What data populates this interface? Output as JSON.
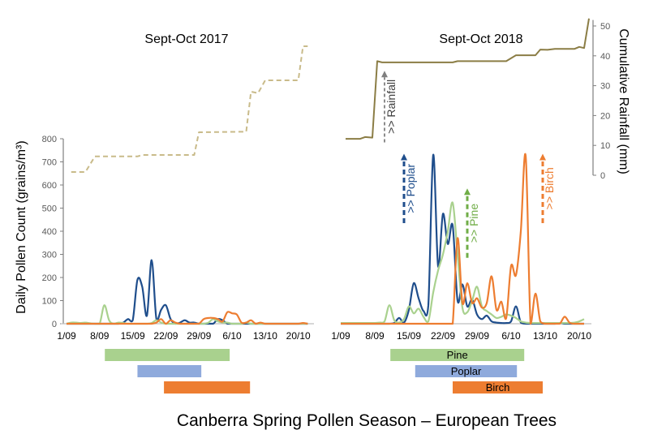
{
  "chart_data": {
    "type": "line",
    "title": "Canberra Spring Pollen Season – European Trees",
    "ylabel": "Daily Pollen Count (grains/m³)",
    "y2label": "Cumulative Rainfall (mm)",
    "ylim": [
      0,
      800
    ],
    "y2lim": [
      0,
      50
    ],
    "yticks": [
      0,
      100,
      200,
      300,
      400,
      500,
      600,
      700,
      800
    ],
    "y2ticks": [
      0,
      10,
      20,
      30,
      40,
      50
    ],
    "xticks": [
      {
        "day": 0,
        "label": "1/09"
      },
      {
        "day": 7,
        "label": "8/09"
      },
      {
        "day": 14,
        "label": "15/09"
      },
      {
        "day": 21,
        "label": "22/09"
      },
      {
        "day": 28,
        "label": "29/09"
      },
      {
        "day": 35,
        "label": "6/10"
      },
      {
        "day": 42,
        "label": "13/10"
      },
      {
        "day": 49,
        "label": "20/10"
      }
    ],
    "colors": {
      "poplar": "#1f4e8c",
      "pine": "#a9d18e",
      "birch": "#ed7d31",
      "rain2018": "#8b7d45",
      "rain2017": "#c9bb8a",
      "poplar_bar": "#8faadc",
      "rain_arrow": "#7f7f7f"
    },
    "panels": [
      {
        "subtitle": "Sept-Oct 2017",
        "series": [
          {
            "name": "Poplar",
            "key": "poplar",
            "values": [
              0,
              0,
              0,
              0,
              0,
              0,
              0,
              0,
              0,
              0,
              0,
              0,
              5,
              20,
              15,
              190,
              160,
              35,
              275,
              20,
              60,
              80,
              20,
              0,
              5,
              15,
              5,
              5,
              0,
              0,
              0,
              0,
              20,
              15,
              0,
              0,
              0,
              0,
              0,
              0,
              0,
              0,
              0,
              0,
              0,
              0,
              0,
              0,
              0,
              0,
              0,
              0
            ]
          },
          {
            "name": "Pine",
            "key": "pine",
            "values": [
              0,
              5,
              5,
              3,
              5,
              2,
              0,
              0,
              80,
              15,
              0,
              5,
              3,
              0,
              0,
              0,
              0,
              0,
              3,
              15,
              5,
              0,
              0,
              0,
              0,
              0,
              0,
              0,
              0,
              0,
              5,
              20,
              10,
              5,
              5,
              0,
              0,
              0,
              5,
              0,
              0,
              0,
              0,
              0,
              0,
              0,
              0,
              0,
              0,
              0,
              0,
              0
            ]
          },
          {
            "name": "Birch",
            "key": "birch",
            "values": [
              0,
              0,
              0,
              0,
              0,
              0,
              0,
              0,
              0,
              0,
              0,
              0,
              0,
              0,
              0,
              0,
              0,
              0,
              0,
              5,
              20,
              0,
              15,
              5,
              0,
              0,
              0,
              0,
              0,
              20,
              25,
              25,
              20,
              10,
              50,
              45,
              40,
              5,
              5,
              15,
              0,
              5,
              0,
              0,
              0,
              0,
              0,
              0,
              0,
              0,
              3,
              0
            ]
          }
        ],
        "rainfall": {
          "name": "Cumulative Rainfall 2017",
          "style": "dashed",
          "points": [
            [
              1,
              1.1
            ],
            [
              4,
              1.1
            ],
            [
              6,
              6.3
            ],
            [
              15,
              6.3
            ],
            [
              16,
              6.8
            ],
            [
              27,
              6.8
            ],
            [
              28,
              14.4
            ],
            [
              38,
              14.6
            ],
            [
              39,
              28
            ],
            [
              40.5,
              27.5
            ],
            [
              42,
              31.8
            ],
            [
              49,
              31.8
            ],
            [
              50,
              43.2
            ],
            [
              51,
              43.2
            ]
          ]
        },
        "seasons": [
          {
            "name": "Pine",
            "key": "pine",
            "start": 8.1,
            "end": 34.5,
            "label": ""
          },
          {
            "name": "Poplar",
            "key": "poplar_bar",
            "start": 15,
            "end": 28.5,
            "label": ""
          },
          {
            "name": "Birch",
            "key": "birch",
            "start": 20.6,
            "end": 38.8,
            "label": ""
          }
        ],
        "annotations": []
      },
      {
        "subtitle": "Sept-Oct 2018",
        "series": [
          {
            "name": "Poplar",
            "key": "poplar",
            "values": [
              0,
              0,
              0,
              0,
              0,
              0,
              0,
              0,
              0,
              0,
              0,
              3,
              25,
              5,
              60,
              175,
              110,
              55,
              80,
              730,
              250,
              475,
              345,
              425,
              100,
              170,
              75,
              105,
              40,
              20,
              35,
              10,
              5,
              3,
              3,
              10,
              75,
              5,
              0,
              0,
              0,
              0,
              0,
              0,
              0,
              3,
              0,
              0,
              0,
              0,
              0
            ]
          },
          {
            "name": "Pine",
            "key": "pine",
            "values": [
              3,
              3,
              3,
              3,
              3,
              3,
              3,
              3,
              5,
              10,
              80,
              15,
              5,
              20,
              75,
              45,
              65,
              30,
              10,
              135,
              230,
              300,
              400,
              523,
              300,
              70,
              50,
              100,
              160,
              75,
              55,
              40,
              25,
              30,
              40,
              35,
              25,
              10,
              5,
              3,
              3,
              3,
              3,
              3,
              3,
              3,
              3,
              3,
              5,
              10,
              20
            ]
          },
          {
            "name": "Birch",
            "key": "birch",
            "values": [
              0,
              0,
              0,
              0,
              0,
              0,
              0,
              0,
              0,
              0,
              0,
              0,
              0,
              0,
              0,
              0,
              0,
              0,
              0,
              0,
              0,
              0,
              0,
              0,
              370,
              90,
              175,
              90,
              110,
              70,
              90,
              205,
              60,
              95,
              25,
              250,
              210,
              400,
              725,
              0,
              130,
              10,
              0,
              0,
              0,
              0,
              30,
              5,
              0,
              0,
              0
            ]
          }
        ],
        "rainfall": {
          "name": "Cumulative Rainfall 2018",
          "style": "solid",
          "points": [
            [
              1,
              12.2
            ],
            [
              4,
              12.2
            ],
            [
              5,
              12.8
            ],
            [
              6.5,
              12.6
            ],
            [
              7.5,
              38.2
            ],
            [
              8.5,
              37.8
            ],
            [
              23,
              37.8
            ],
            [
              24,
              38.2
            ],
            [
              34,
              38.2
            ],
            [
              36,
              40.2
            ],
            [
              40,
              40.2
            ],
            [
              41,
              42.1
            ],
            [
              42.5,
              42
            ],
            [
              44,
              42.3
            ],
            [
              48,
              42.3
            ],
            [
              49,
              43
            ],
            [
              50,
              42.6
            ],
            [
              51,
              52.5
            ]
          ]
        },
        "seasons": [
          {
            "name": "Pine",
            "key": "pine",
            "start": 10.2,
            "end": 37.7,
            "label": "Pine"
          },
          {
            "name": "Poplar",
            "key": "poplar_bar",
            "start": 15.3,
            "end": 36.2,
            "label": "Poplar"
          },
          {
            "name": "Birch",
            "key": "birch",
            "start": 23,
            "end": 41.5,
            "label": "Birch"
          }
        ],
        "annotations": [
          {
            "label": ">> Rainfall",
            "key": "rain_arrow",
            "day": 9,
            "axis": "rain",
            "from": 11,
            "to": 35
          },
          {
            "label": ">> Poplar",
            "key": "poplar",
            "day": 13,
            "axis": "pollen",
            "from": 435,
            "to": 735
          },
          {
            "label": ">> Pine",
            "key": "pine_arrow",
            "day": 26,
            "axis": "pollen",
            "from": 285,
            "to": 585
          },
          {
            "label": ">> Birch",
            "key": "birch",
            "day": 41.5,
            "axis": "pollen",
            "from": 435,
            "to": 735
          }
        ]
      }
    ]
  }
}
